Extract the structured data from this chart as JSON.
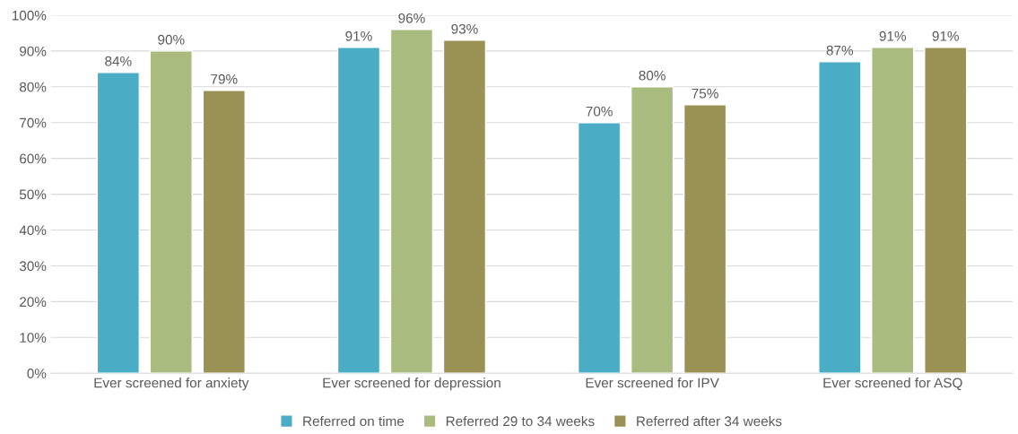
{
  "chart_data": {
    "type": "bar",
    "categories": [
      "Ever screened for anxiety",
      "Ever screened for depression",
      "Ever screened for IPV",
      "Ever screened for ASQ"
    ],
    "series": [
      {
        "name": "Referred on time",
        "color": "#4bacc6",
        "values": [
          84,
          91,
          70,
          87
        ],
        "value_labels": [
          "84%",
          "91%",
          "70%",
          "87%"
        ]
      },
      {
        "name": "Referred 29 to 34 weeks",
        "color": "#a9bb7f",
        "values": [
          90,
          96,
          80,
          91
        ],
        "value_labels": [
          "90%",
          "96%",
          "80%",
          "91%"
        ]
      },
      {
        "name": "Referred after 34 weeks",
        "color": "#9a9155",
        "values": [
          79,
          93,
          75,
          91
        ],
        "value_labels": [
          "79%",
          "93%",
          "75%",
          "91%"
        ]
      }
    ],
    "ylim": [
      0,
      100
    ],
    "yticks": [
      {
        "value": 0,
        "label": "0%"
      },
      {
        "value": 10,
        "label": "10%"
      },
      {
        "value": 20,
        "label": "20%"
      },
      {
        "value": 30,
        "label": "30%"
      },
      {
        "value": 40,
        "label": "40%"
      },
      {
        "value": 50,
        "label": "50%"
      },
      {
        "value": 60,
        "label": "60%"
      },
      {
        "value": 70,
        "label": "70%"
      },
      {
        "value": 80,
        "label": "80%"
      },
      {
        "value": 90,
        "label": "90%"
      },
      {
        "value": 100,
        "label": "100%"
      }
    ],
    "grid": "y",
    "legend": "bottom"
  }
}
